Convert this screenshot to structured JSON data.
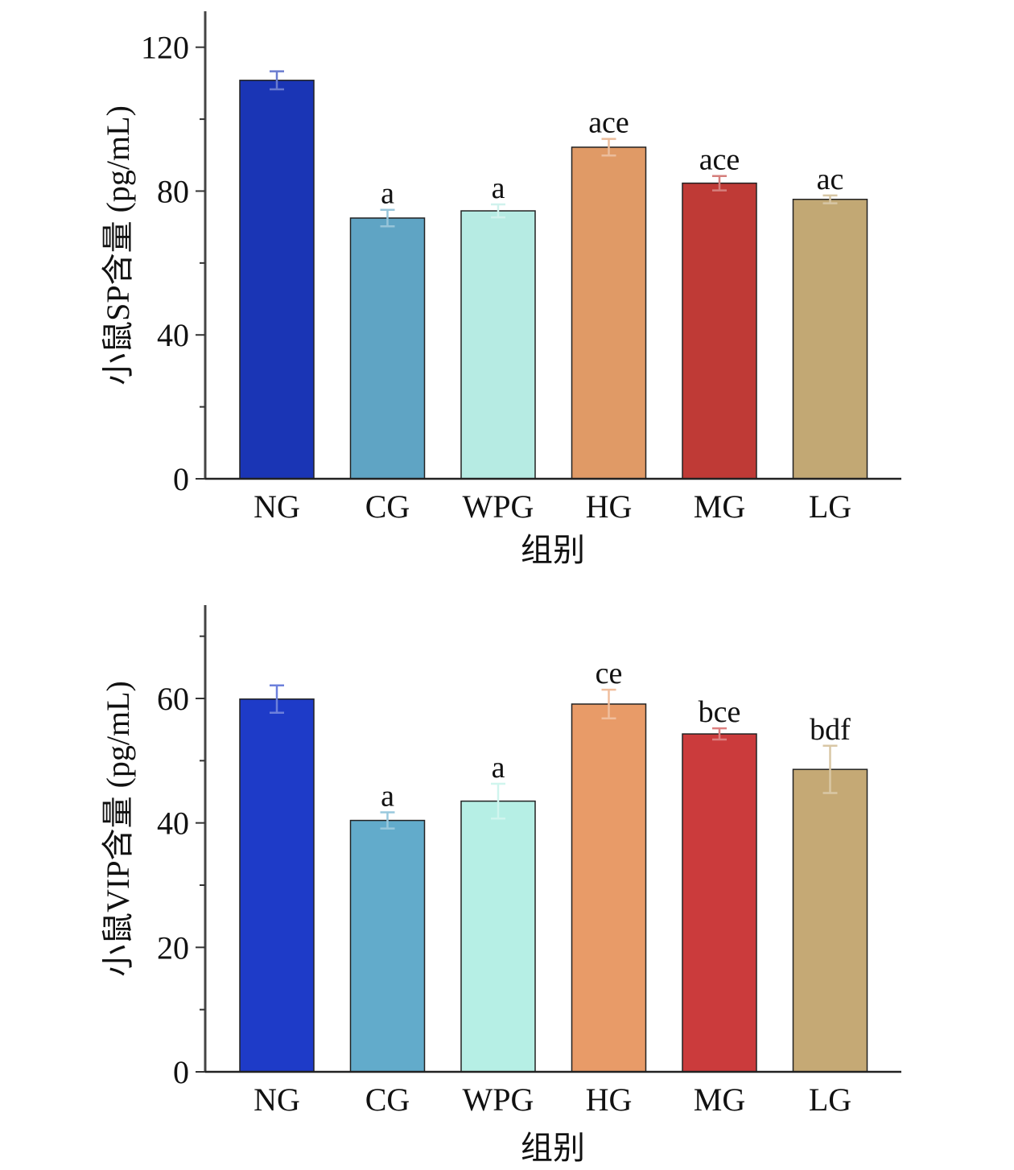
{
  "chart_data": [
    {
      "type": "bar",
      "title": "",
      "xlabel": "组别",
      "ylabel": "小鼠SP含量 (pg/mL)",
      "categories": [
        "NG",
        "CG",
        "WPG",
        "HG",
        "MG",
        "LG"
      ],
      "values": [
        110.8,
        72.5,
        74.5,
        92.2,
        82.2,
        77.7
      ],
      "errors": [
        2.5,
        2.3,
        1.8,
        2.3,
        2.0,
        1.1
      ],
      "significance": [
        "",
        "a",
        "a",
        "ace",
        "ace",
        "ac"
      ],
      "colors": [
        "#1a35b5",
        "#5fa4c4",
        "#b6ebe3",
        "#e09a66",
        "#bf3a36",
        "#c2a874"
      ],
      "ylim": [
        0,
        130
      ],
      "yticks": [
        0,
        40,
        80,
        120
      ],
      "ytick_labels": [
        "0",
        "40",
        "80",
        "120"
      ],
      "minor_step": 20,
      "grid": false
    },
    {
      "type": "bar",
      "title": "",
      "xlabel": "组别",
      "ylabel": "小鼠VIP含量 (pg/mL)",
      "categories": [
        "NG",
        "CG",
        "WPG",
        "HG",
        "MG",
        "LG"
      ],
      "values": [
        59.9,
        40.4,
        43.5,
        59.1,
        54.3,
        48.6
      ],
      "errors": [
        2.2,
        1.3,
        2.8,
        2.3,
        0.9,
        3.8
      ],
      "significance": [
        "",
        "a",
        "a",
        "ce",
        "bce",
        "bdf"
      ],
      "colors": [
        "#1e3bc8",
        "#62abcb",
        "#b6efe5",
        "#e89b68",
        "#cb3b3c",
        "#c5a975"
      ],
      "ylim": [
        0,
        75
      ],
      "yticks": [
        0,
        20,
        40,
        60
      ],
      "ytick_labels": [
        "0",
        "20",
        "40",
        "60"
      ],
      "minor_step": 10,
      "grid": false
    }
  ]
}
